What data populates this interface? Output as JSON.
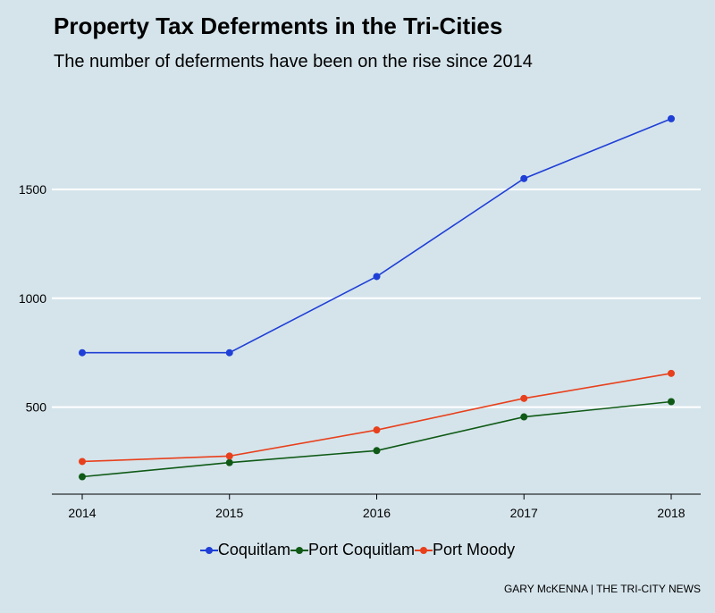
{
  "title": "Property Tax Deferments in the Tri-Cities",
  "subtitle": "The number of deferments have been on the rise since 2014",
  "credit": "GARY McKENNA | THE TRI-CITY NEWS",
  "chart_data": {
    "type": "line",
    "title": "Property Tax Deferments in the Tri-Cities",
    "subtitle": "The number of deferments have been on the rise since 2014",
    "x": [
      "2014",
      "2015",
      "2016",
      "2017",
      "2018"
    ],
    "y_ticks": [
      500,
      1000,
      1500
    ],
    "ylim": [
      100,
      1960
    ],
    "grid": "horizontal",
    "legend_position": "bottom",
    "series": [
      {
        "name": "Coquitlam",
        "color": "#1f3fd6",
        "values": [
          750,
          750,
          1100,
          1550,
          1825
        ]
      },
      {
        "name": "Port Coquitlam",
        "color": "#0f5a16",
        "values": [
          180,
          245,
          300,
          455,
          525
        ]
      },
      {
        "name": "Port Moody",
        "color": "#e8401c",
        "values": [
          250,
          275,
          395,
          540,
          655
        ]
      }
    ]
  }
}
